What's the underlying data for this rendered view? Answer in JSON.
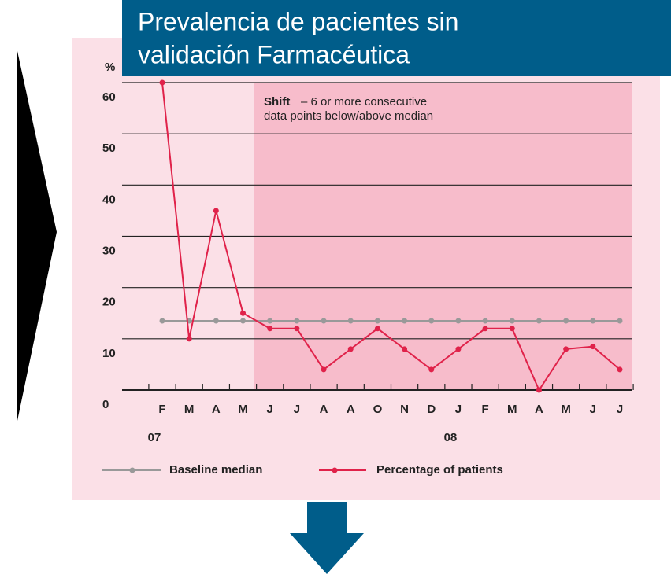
{
  "slide_title": [
    "Prevalencia de pacientes sin",
    "validación Farmacéutica"
  ],
  "chart_data": {
    "type": "line",
    "ylabel": "%",
    "annotation_title": "Shift",
    "annotation": [
      "– 6 or more consecutive",
      "data points below/above median"
    ],
    "categories": [
      "F",
      "M",
      "A",
      "M",
      "J",
      "J",
      "A",
      "A",
      "O",
      "N",
      "D",
      "J",
      "F",
      "M",
      "A",
      "M",
      "J",
      "J"
    ],
    "year_labels": [
      "07",
      null,
      null,
      null,
      null,
      null,
      null,
      null,
      null,
      null,
      null,
      "08",
      null,
      null,
      null,
      null,
      null,
      null
    ],
    "series": [
      {
        "name": "Baseline median",
        "color": "#999999",
        "values": [
          13.5,
          13.5,
          13.5,
          13.5,
          13.5,
          13.5,
          13.5,
          13.5,
          13.5,
          13.5,
          13.5,
          13.5,
          13.5,
          13.5,
          13.5,
          13.5,
          13.5,
          13.5
        ]
      },
      {
        "name": "Percentage of patients",
        "color": "#e0224a",
        "values": [
          60,
          10,
          35,
          15,
          12,
          12,
          4,
          8,
          12,
          8,
          4,
          8,
          12,
          12,
          0,
          8,
          8.5,
          4
        ]
      }
    ],
    "ylim": [
      0,
      60
    ],
    "yticks": [
      0,
      10,
      20,
      30,
      40,
      50,
      60
    ],
    "grid": true
  }
}
